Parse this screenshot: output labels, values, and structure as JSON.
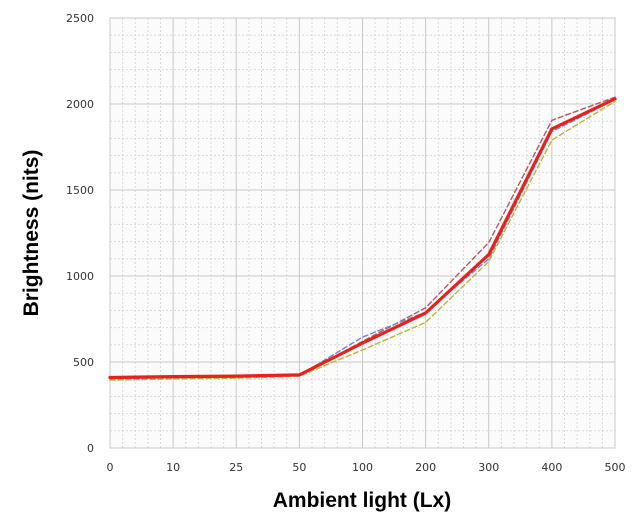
{
  "chart_data": {
    "type": "line",
    "title": "",
    "xlabel": "Ambient light (Lx)",
    "ylabel": "Brightness (nits)",
    "categories": [
      "0",
      "10",
      "25",
      "50",
      "100",
      "200",
      "300",
      "400",
      "500"
    ],
    "ylim": [
      0,
      2500
    ],
    "yticks": [
      0,
      500,
      1000,
      1500,
      2000,
      2500
    ],
    "grid": true,
    "legend": "none",
    "series": [
      {
        "style": "solid",
        "color": "#e8211d",
        "values": [
          410,
          415,
          418,
          425,
          610,
          785,
          1125,
          1855,
          2030
        ]
      },
      {
        "style": "dashed",
        "color": "#b05a6a",
        "values": [
          400,
          405,
          410,
          420,
          620,
          815,
          1195,
          1905,
          2040
        ]
      },
      {
        "style": "dashed",
        "color": "#6f86c8",
        "values": [
          405,
          410,
          414,
          422,
          645,
          790,
          1100,
          1840,
          2025
        ]
      },
      {
        "style": "dashed",
        "color": "#b6b63a",
        "values": [
          395,
          402,
          406,
          418,
          570,
          730,
          1085,
          1790,
          2015
        ]
      }
    ]
  }
}
